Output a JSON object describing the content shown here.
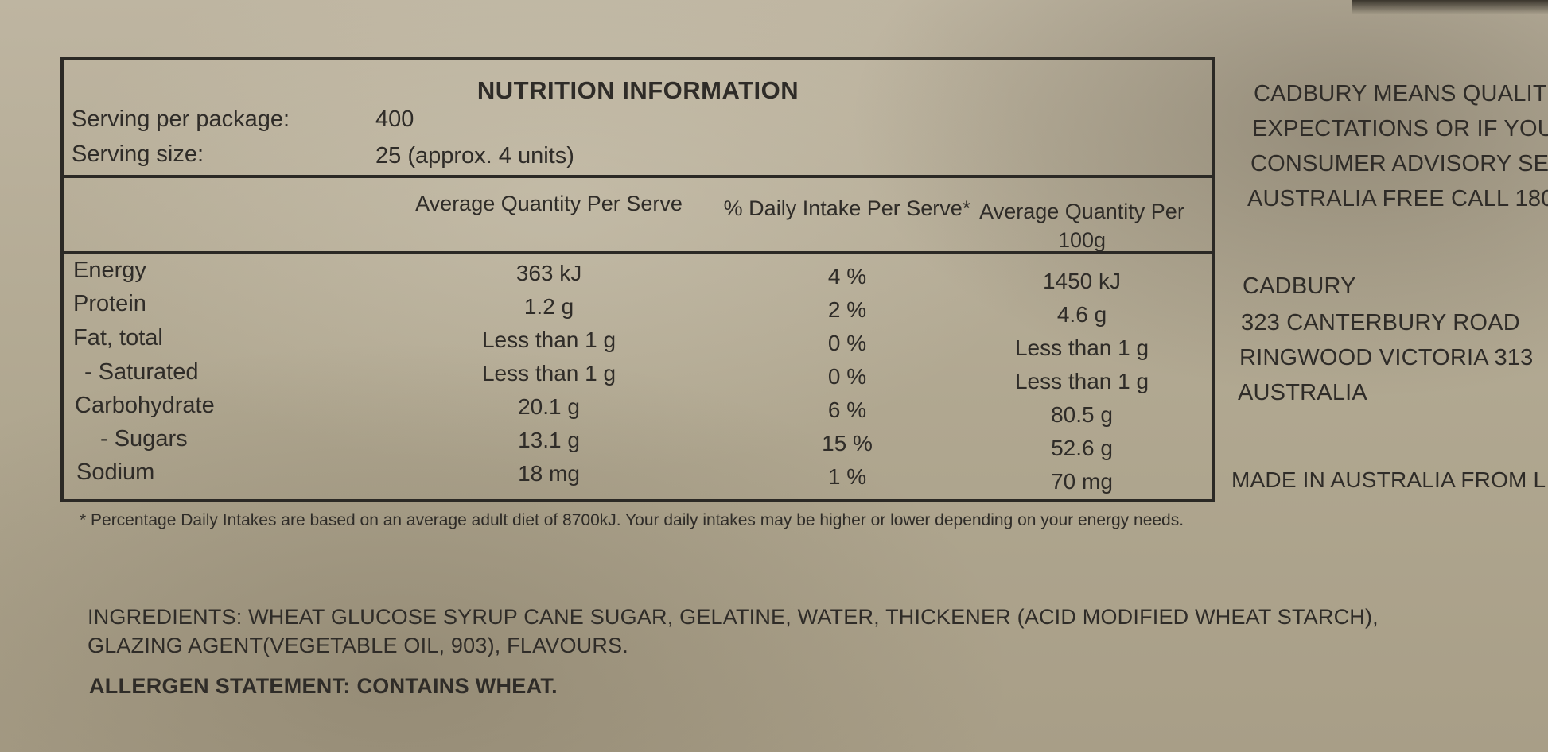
{
  "nutrition": {
    "title": "NUTRITION INFORMATION",
    "serving_per_package_label": "Serving per package:",
    "serving_per_package_value": "400",
    "serving_size_label": "Serving size:",
    "serving_size_value": "25 (approx. 4 units)",
    "columns": [
      "Average Quantity Per Serve",
      "% Daily Intake Per Serve*",
      "Average Quantity Per 100g"
    ],
    "rows": [
      {
        "label": "Energy",
        "per_serve": "363 kJ",
        "daily_intake": "4 %",
        "per_100g": "1450 kJ"
      },
      {
        "label": "Protein",
        "per_serve": "1.2 g",
        "daily_intake": "2 %",
        "per_100g": "4.6 g"
      },
      {
        "label": "Fat, total",
        "per_serve": "Less than 1 g",
        "daily_intake": "0 %",
        "per_100g": "Less than 1 g"
      },
      {
        "label": "- Saturated",
        "per_serve": "Less than 1 g",
        "daily_intake": "0 %",
        "per_100g": "Less than 1 g"
      },
      {
        "label": "Carbohydrate",
        "per_serve": "20.1 g",
        "daily_intake": "6 %",
        "per_100g": "80.5 g"
      },
      {
        "label": "- Sugars",
        "per_serve": "13.1 g",
        "daily_intake": "15 %",
        "per_100g": "52.6 g"
      },
      {
        "label": "Sodium",
        "per_serve": "18 mg",
        "daily_intake": "1 %",
        "per_100g": "70 mg"
      }
    ],
    "footnote": "* Percentage Daily Intakes are based on an average adult diet of 8700kJ. Your daily intakes may be higher or lower depending on your energy needs."
  },
  "ingredients": {
    "text_line1": "INGREDIENTS: WHEAT GLUCOSE SYRUP  CANE SUGAR, GELATINE, WATER, THICKENER (ACID MODIFIED WHEAT STARCH),",
    "text_line2": "GLAZING AGENT(VEGETABLE OIL, 903), FLAVOURS."
  },
  "allergen": "ALLERGEN STATEMENT:  CONTAINS WHEAT.",
  "right_panel": {
    "quality_lines": [
      "CADBURY MEANS QUALIT",
      "EXPECTATIONS OR IF YOU",
      "CONSUMER ADVISORY SE",
      "AUSTRALIA FREE CALL 180"
    ],
    "address_lines": [
      "CADBURY",
      "323 CANTERBURY ROAD",
      "RINGWOOD VICTORIA 313",
      "AUSTRALIA"
    ],
    "made_in": "MADE IN AUSTRALIA FROM L"
  }
}
